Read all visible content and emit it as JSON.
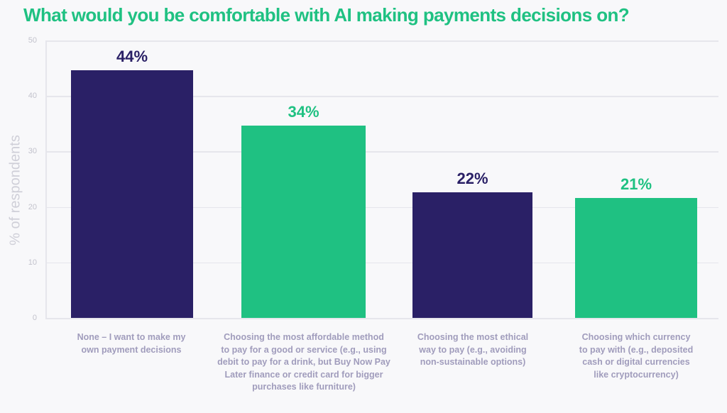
{
  "chart_data": {
    "type": "bar",
    "title": "What would you be comfortable with AI making payments decisions on?",
    "xlabel": "",
    "ylabel": "% of respondents",
    "ylim": [
      0,
      50
    ],
    "yticks": [
      "0",
      "10",
      "20",
      "30",
      "40",
      "50"
    ],
    "grid": true,
    "legend": null,
    "categories": [
      "None – I want to make my own payment decisions",
      "Choosing the most affordable method to pay for a good or service (e.g., using debit to pay for a drink, but Buy Now Pay Later finance or credit card for bigger purchases like furniture)",
      "Choosing the most ethical way to pay (e.g., avoiding non-sustainable options)",
      "Choosing which currency to pay with (e.g., deposited cash or digital currencies like cryptocurrency)"
    ],
    "values": [
      44,
      34,
      22,
      21
    ],
    "value_labels": [
      "44%",
      "34%",
      "22%",
      "21%"
    ],
    "bar_colors": [
      "#2a2066",
      "#1fc182",
      "#2a2066",
      "#1fc182"
    ]
  },
  "colors": {
    "title": "#1fc182",
    "navy": "#2a2066",
    "green": "#1fc182",
    "category_text": "#a09cbc",
    "axis_text": "#c2c2cc"
  },
  "category_lines": [
    [
      "None – I want to make my",
      "own payment decisions"
    ],
    [
      "Choosing the most affordable method",
      "to pay for a good or service (e.g., using",
      "debit to pay for a drink, but Buy Now Pay",
      "Later finance or credit card for bigger",
      "purchases like furniture)"
    ],
    [
      "Choosing the most ethical",
      "way to pay (e.g., avoiding",
      "non-sustainable options)"
    ],
    [
      "Choosing which currency",
      "to pay with (e.g., deposited",
      "cash or digital currencies",
      "like cryptocurrency)"
    ]
  ]
}
